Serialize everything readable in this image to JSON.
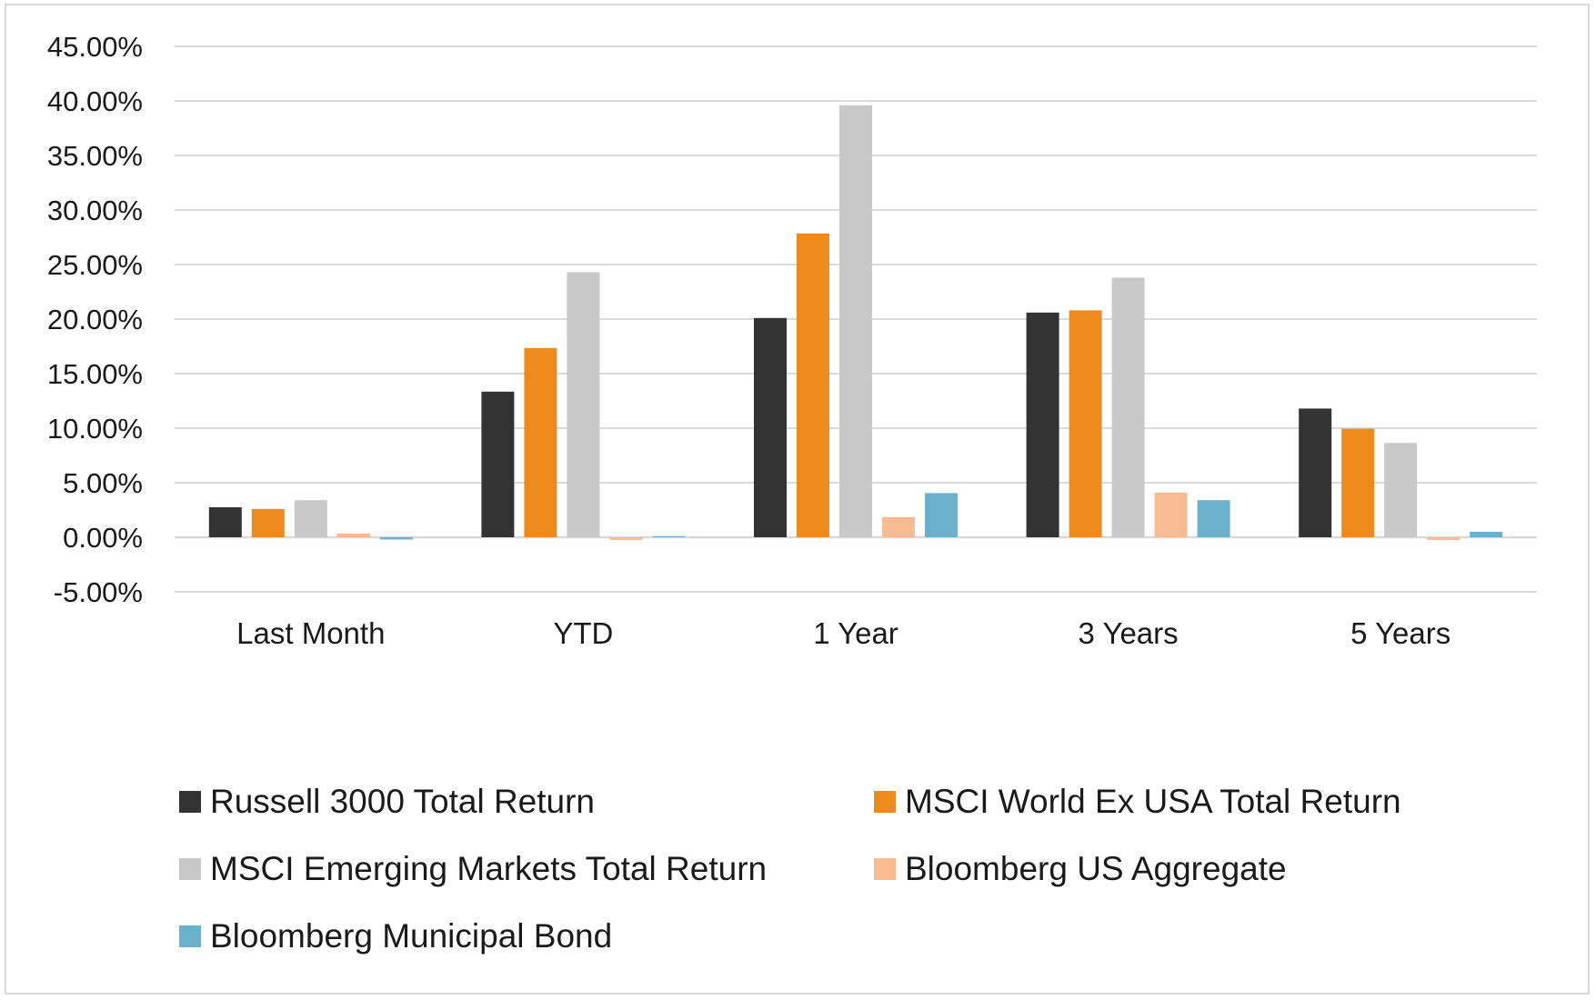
{
  "chart_data": {
    "type": "bar",
    "categories": [
      "Last Month",
      "YTD",
      "1 Year",
      "3 Years",
      "5 Years"
    ],
    "series": [
      {
        "name": "Russell 3000 Total Return",
        "color": "#333333",
        "values": [
          2.75,
          13.35,
          20.1,
          20.6,
          11.8
        ]
      },
      {
        "name": "MSCI World Ex USA Total Return",
        "color": "#ec8a1e",
        "values": [
          2.6,
          17.35,
          27.85,
          20.8,
          9.95
        ]
      },
      {
        "name": "MSCI Emerging Markets Total Return",
        "color": "#c8c8c8",
        "values": [
          3.4,
          24.3,
          39.6,
          23.8,
          8.65
        ]
      },
      {
        "name": "Bloomberg US Aggregate",
        "color": "#fbbb92",
        "values": [
          0.35,
          -0.25,
          1.85,
          4.1,
          -0.25
        ]
      },
      {
        "name": "Bloomberg Municipal Bond",
        "color": "#6bb1cc",
        "values": [
          -0.2,
          0.1,
          4.05,
          3.4,
          0.5
        ]
      }
    ],
    "ylim": [
      -5,
      45
    ],
    "yticks": [
      "45.00%",
      "40.00%",
      "35.00%",
      "30.00%",
      "25.00%",
      "20.00%",
      "15.00%",
      "10.00%",
      "5.00%",
      "0.00%",
      "-5.00%"
    ],
    "ytick_values": [
      45,
      40,
      35,
      30,
      25,
      20,
      15,
      10,
      5,
      0,
      -5
    ],
    "grid": true,
    "legend_position": "bottom",
    "gridline_color": "#d9d9d9"
  }
}
